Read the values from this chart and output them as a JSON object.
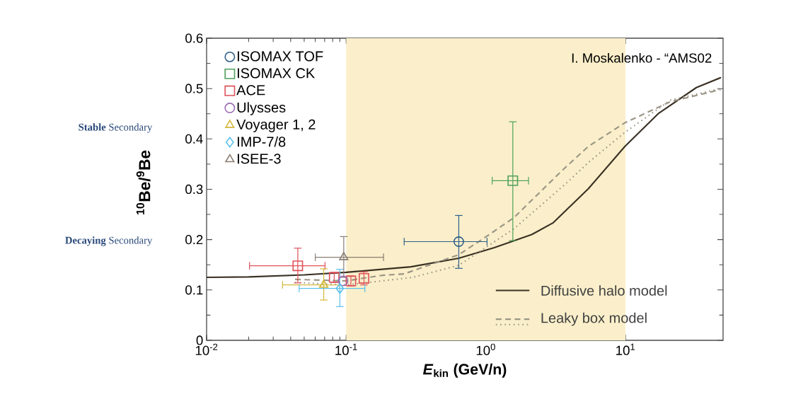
{
  "chart_data": {
    "type": "scatter",
    "xlabel": "*E*$_{kin}$ (GeV/n)",
    "ylabel": "$^{10}$Be/$^{9}$Be",
    "annotations": [
      "I. Moskalenko - “AMS02",
      "**Stable** Secondary",
      "**Decaying** Secondary"
    ],
    "log": "x",
    "xlim": [
      0.01,
      50
    ],
    "ylim": [
      0,
      0.6
    ],
    "xticks": [
      {
        "value": 0.01,
        "label": "10$^{-2}$"
      },
      {
        "value": 0.1,
        "label": "10$^{-1}$"
      },
      {
        "value": 1,
        "label": "10$^{0}$"
      },
      {
        "value": 10,
        "label": "10$^{1}$"
      }
    ],
    "yticks": [
      0,
      0.1,
      0.2,
      0.3,
      0.4,
      0.5,
      0.6
    ],
    "legend": "top left",
    "bands": [
      {
        "axis": "x",
        "from": 0.1,
        "to": 10,
        "color": "#faefca"
      }
    ],
    "series": [
      {
        "name": "ISOMAX TOF",
        "color": "#2e5f8a",
        "marker": "circle",
        "x": [
          0.64
        ],
        "values": [
          0.196
        ],
        "errors": [
          [
            0.143,
            0.248
          ]
        ],
        "xerrors": [
          [
            0.26,
            1.02
          ]
        ]
      },
      {
        "name": "ISOMAX CK",
        "color": "#4fa15a",
        "marker": "square",
        "x": [
          1.56
        ],
        "values": [
          0.317
        ],
        "errors": [
          [
            0.198,
            0.434
          ]
        ],
        "xerrors": [
          [
            1.11,
            2.02
          ]
        ]
      },
      {
        "name": "ACE",
        "color": "#e0525a",
        "marker": "square",
        "x": [
          0.045,
          0.082,
          0.108,
          0.134
        ],
        "values": [
          0.148,
          0.125,
          0.118,
          0.123
        ],
        "errors": [
          [
            0.114,
            0.183
          ],
          [
            0.115,
            0.135
          ],
          [
            0.108,
            0.128
          ],
          [
            0.11,
            0.136
          ]
        ],
        "xerrors": [
          [
            0.0203,
            0.0705
          ],
          null,
          null,
          null
        ]
      },
      {
        "name": "Ulysses",
        "color": "#9b6bb5",
        "marker": "circle",
        "x": [
          0.095
        ],
        "values": [
          0.118
        ],
        "errors": [
          null
        ],
        "xerrors": [
          null
        ]
      },
      {
        "name": "Voyager 1, 2",
        "color": "#d4b83a",
        "marker": "triangle",
        "x": [
          0.069
        ],
        "values": [
          0.11
        ],
        "errors": [
          [
            0.08,
            0.142
          ]
        ],
        "xerrors": [
          [
            0.035,
            0.09
          ]
        ]
      },
      {
        "name": "IMP-7/8",
        "color": "#5bc0eb",
        "marker": "diamond",
        "x": [
          0.09
        ],
        "values": [
          0.103
        ],
        "errors": [
          [
            0.067,
            0.141
          ]
        ],
        "xerrors": [
          [
            0.046,
            0.136
          ]
        ]
      },
      {
        "name": "ISEE-3",
        "color": "#8a7d72",
        "marker": "triangle",
        "x": [
          0.096
        ],
        "values": [
          0.165
        ],
        "errors": [
          [
            0.125,
            0.206
          ]
        ],
        "xerrors": [
          [
            0.06,
            0.185
          ]
        ]
      },
      {
        "name": "Diffusive halo model",
        "type": "line",
        "color": "#3a3124",
        "line_style": "solid",
        "x": [
          0.01,
          0.02,
          0.05,
          0.1,
          0.18,
          0.29,
          0.64,
          1.15,
          2.13,
          3.02,
          5.42,
          9.9,
          17.3,
          32.2,
          48.4
        ],
        "values": [
          0.125,
          0.126,
          0.13,
          0.135,
          0.141,
          0.146,
          0.163,
          0.184,
          0.21,
          0.233,
          0.301,
          0.385,
          0.451,
          0.502,
          0.522
        ]
      },
      {
        "name": "Leaky box model",
        "type": "line",
        "color": "#9a9585",
        "line_style": "dashed",
        "x": [
          0.043,
          0.1,
          0.18,
          0.26,
          0.64,
          1.02,
          1.58,
          3.54,
          5.42,
          9.9,
          21,
          48
        ],
        "values": [
          0.121,
          0.118,
          0.129,
          0.132,
          0.17,
          0.207,
          0.243,
          0.338,
          0.385,
          0.432,
          0.474,
          0.498
        ]
      },
      {
        "type": "line",
        "color": "#9a9585",
        "line_style": "dotted",
        "x": [
          0.043,
          0.1,
          0.18,
          0.3,
          0.64,
          1.58,
          3.7,
          5.42,
          9.9,
          21,
          48
        ],
        "values": [
          0.115,
          0.11,
          0.118,
          0.125,
          0.149,
          0.221,
          0.31,
          0.353,
          0.413,
          0.477,
          0.5
        ]
      }
    ]
  }
}
